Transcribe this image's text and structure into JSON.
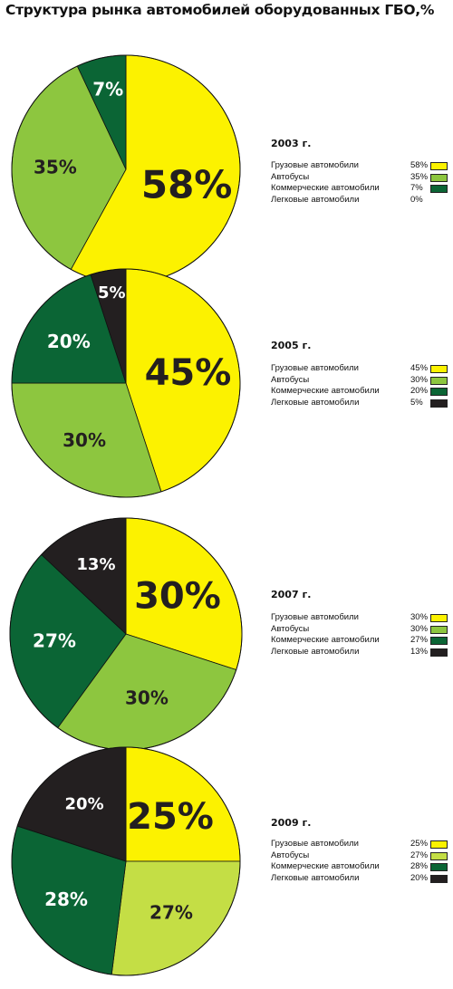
{
  "title": "Структура рынка автомобилей оборудованных ГБО,%",
  "colors": {
    "gruzovye": "#fcf200",
    "avtobusy": "#8dc63f",
    "kommercheskie": "#0b6535",
    "legkovye": "#231f20"
  },
  "chart_data": [
    {
      "type": "pie",
      "year_label": "2003 г.",
      "slices": [
        {
          "label": "Грузовые автомобили",
          "value": 58,
          "value_label": "58%",
          "color": "#fcf200",
          "text_color": "#231f20"
        },
        {
          "label": "Автобусы",
          "value": 35,
          "value_label": "35%",
          "color": "#8dc63f",
          "text_color": "#231f20"
        },
        {
          "label": "Коммерческие автомобили",
          "value": 7,
          "value_label": "7%",
          "color": "#0b6535",
          "text_color": "#ffffff"
        },
        {
          "label": "Легковые автомобили",
          "value": 0,
          "value_label": "0%",
          "color": "#231f20",
          "text_color": "#ffffff"
        }
      ]
    },
    {
      "type": "pie",
      "year_label": "2005 г.",
      "slices": [
        {
          "label": "Грузовые автомобили",
          "value": 45,
          "value_label": "45%",
          "color": "#fcf200",
          "text_color": "#231f20"
        },
        {
          "label": "Автобусы",
          "value": 30,
          "value_label": "30%",
          "color": "#8dc63f",
          "text_color": "#231f20"
        },
        {
          "label": "Коммерческие автомобили",
          "value": 20,
          "value_label": "20%",
          "color": "#0b6535",
          "text_color": "#ffffff"
        },
        {
          "label": "Легковые автомобили",
          "value": 5,
          "value_label": "5%",
          "color": "#231f20",
          "text_color": "#ffffff"
        }
      ]
    },
    {
      "type": "pie",
      "year_label": "2007 г.",
      "slices": [
        {
          "label": "Грузовые автомобили",
          "value": 30,
          "value_label": "30%",
          "color": "#fcf200",
          "text_color": "#231f20"
        },
        {
          "label": "Автобусы",
          "value": 30,
          "value_label": "30%",
          "color": "#8dc63f",
          "text_color": "#231f20"
        },
        {
          "label": "Коммерческие автомобили",
          "value": 27,
          "value_label": "27%",
          "color": "#0b6535",
          "text_color": "#ffffff"
        },
        {
          "label": "Легковые автомобили",
          "value": 13,
          "value_label": "13%",
          "color": "#231f20",
          "text_color": "#ffffff"
        }
      ]
    },
    {
      "type": "pie",
      "year_label": "2009 г.",
      "slices": [
        {
          "label": "Грузовые автомобили",
          "value": 25,
          "value_label": "25%",
          "color": "#fcf200",
          "text_color": "#231f20"
        },
        {
          "label": "Автобусы",
          "value": 27,
          "value_label": "27%",
          "color": "#c4de45",
          "text_color": "#231f20"
        },
        {
          "label": "Коммерческие автомобили",
          "value": 28,
          "value_label": "28%",
          "color": "#0b6535",
          "text_color": "#ffffff"
        },
        {
          "label": "Легковые автомобили",
          "value": 20,
          "value_label": "20%",
          "color": "#231f20",
          "text_color": "#ffffff"
        }
      ]
    }
  ]
}
